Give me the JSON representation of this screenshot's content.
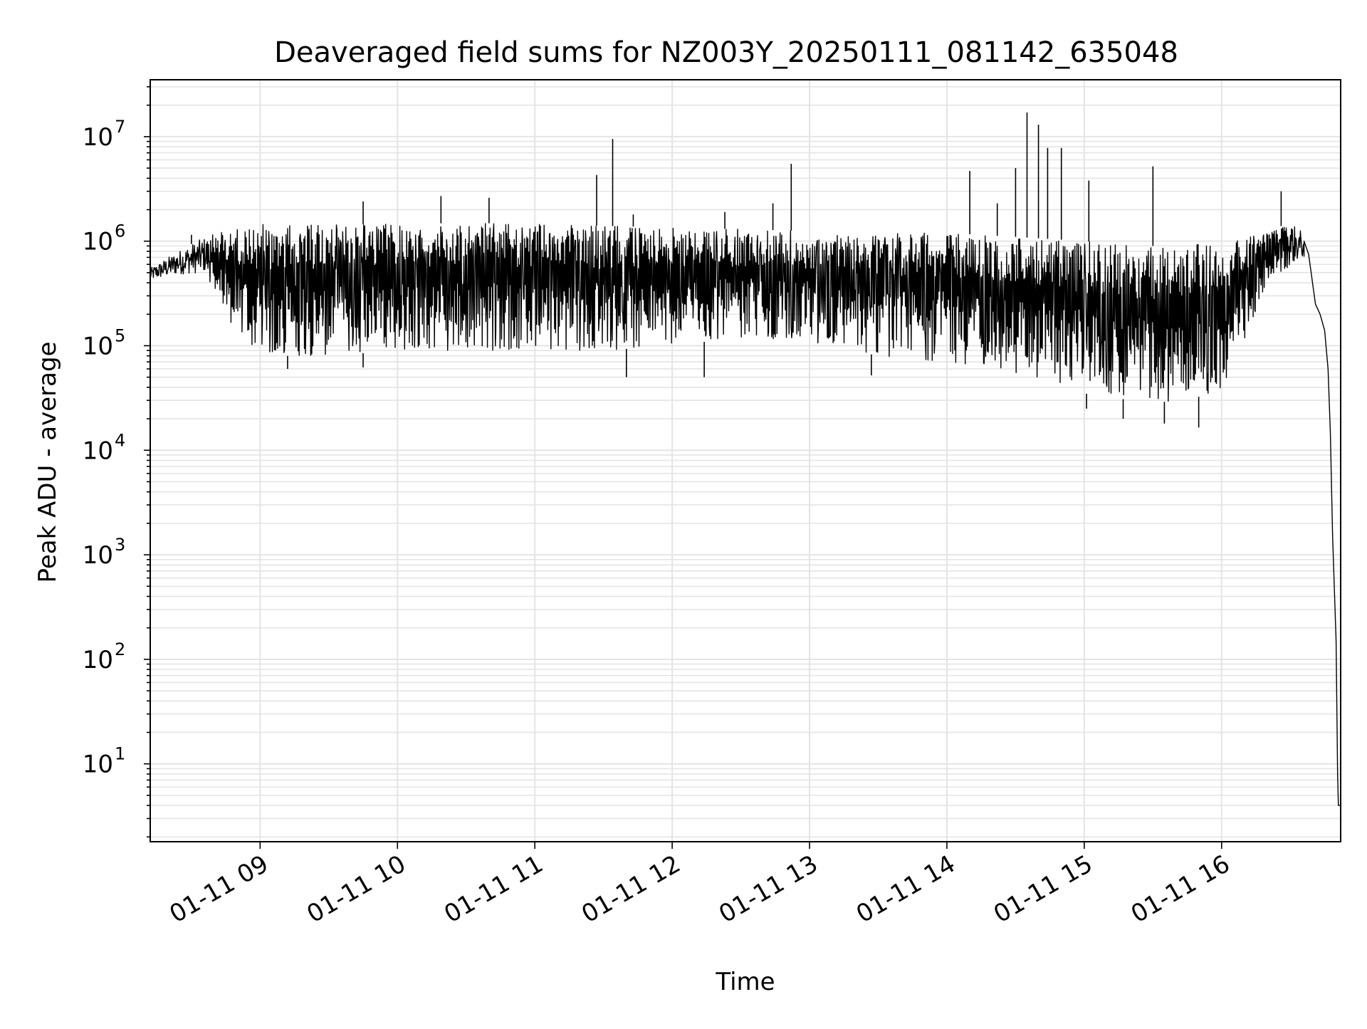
{
  "chart_data": {
    "type": "line",
    "title": "Deaveraged field sums for NZ003Y_20250111_081142_635048",
    "xlabel": "Time",
    "ylabel": "Peak ADU - average",
    "x_axis": {
      "kind": "time",
      "range": [
        "2025-01-11T08:12:00",
        "2025-01-11T16:52:00"
      ],
      "ticks": [
        {
          "value": "2025-01-11T09:00:00",
          "label": "01-11 09"
        },
        {
          "value": "2025-01-11T10:00:00",
          "label": "01-11 10"
        },
        {
          "value": "2025-01-11T11:00:00",
          "label": "01-11 11"
        },
        {
          "value": "2025-01-11T12:00:00",
          "label": "01-11 12"
        },
        {
          "value": "2025-01-11T13:00:00",
          "label": "01-11 13"
        },
        {
          "value": "2025-01-11T14:00:00",
          "label": "01-11 14"
        },
        {
          "value": "2025-01-11T15:00:00",
          "label": "01-11 15"
        },
        {
          "value": "2025-01-11T16:00:00",
          "label": "01-11 16"
        }
      ]
    },
    "y_axis": {
      "scale": "log",
      "range": [
        1.8,
        35000000
      ],
      "ticks": [
        {
          "value": 10,
          "base": "10",
          "exp": "1"
        },
        {
          "value": 100,
          "base": "10",
          "exp": "2"
        },
        {
          "value": 1000,
          "base": "10",
          "exp": "3"
        },
        {
          "value": 10000,
          "base": "10",
          "exp": "4"
        },
        {
          "value": 100000,
          "base": "10",
          "exp": "5"
        },
        {
          "value": 1000000,
          "base": "10",
          "exp": "6"
        },
        {
          "value": 10000000,
          "base": "10",
          "exp": "7"
        }
      ]
    },
    "grid": true,
    "series": [
      {
        "color": "#000000",
        "envelope": [
          {
            "t": "2025-01-11T08:12:00",
            "low": 420000,
            "high": 550000
          },
          {
            "t": "2025-01-11T08:24:00",
            "low": 480000,
            "high": 800000
          },
          {
            "t": "2025-01-11T08:36:00",
            "low": 500000,
            "high": 1100000
          },
          {
            "t": "2025-01-11T08:48:00",
            "low": 150000,
            "high": 1300000
          },
          {
            "t": "2025-01-11T09:00:00",
            "low": 80000,
            "high": 1450000
          },
          {
            "t": "2025-01-11T09:30:00",
            "low": 80000,
            "high": 1450000
          },
          {
            "t": "2025-01-11T10:00:00",
            "low": 90000,
            "high": 1450000
          },
          {
            "t": "2025-01-11T10:30:00",
            "low": 90000,
            "high": 1500000
          },
          {
            "t": "2025-01-11T11:00:00",
            "low": 90000,
            "high": 1450000
          },
          {
            "t": "2025-01-11T11:30:00",
            "low": 90000,
            "high": 1400000
          },
          {
            "t": "2025-01-11T12:00:00",
            "low": 100000,
            "high": 1350000
          },
          {
            "t": "2025-01-11T12:30:00",
            "low": 120000,
            "high": 1300000
          },
          {
            "t": "2025-01-11T13:00:00",
            "low": 110000,
            "high": 1250000
          },
          {
            "t": "2025-01-11T13:30:00",
            "low": 80000,
            "high": 1200000
          },
          {
            "t": "2025-01-11T14:00:00",
            "low": 70000,
            "high": 1200000
          },
          {
            "t": "2025-01-11T14:30:00",
            "low": 55000,
            "high": 1100000
          },
          {
            "t": "2025-01-11T15:00:00",
            "low": 35000,
            "high": 1000000
          },
          {
            "t": "2025-01-11T15:30:00",
            "low": 28000,
            "high": 900000
          },
          {
            "t": "2025-01-11T16:00:00",
            "low": 35000,
            "high": 950000
          },
          {
            "t": "2025-01-11T16:18:00",
            "low": 300000,
            "high": 1200000
          },
          {
            "t": "2025-01-11T16:30:00",
            "low": 600000,
            "high": 1500000
          },
          {
            "t": "2025-01-11T16:36:00",
            "low": 700000,
            "high": 1200000
          }
        ],
        "tail": [
          {
            "t": "2025-01-11T16:36:00",
            "y": 1000000
          },
          {
            "t": "2025-01-11T16:38:00",
            "y": 750000
          },
          {
            "t": "2025-01-11T16:41:00",
            "y": 250000
          },
          {
            "t": "2025-01-11T16:43:00",
            "y": 200000
          },
          {
            "t": "2025-01-11T16:45:00",
            "y": 140000
          },
          {
            "t": "2025-01-11T16:46:30",
            "y": 60000
          },
          {
            "t": "2025-01-11T16:47:30",
            "y": 15000
          },
          {
            "t": "2025-01-11T16:48:30",
            "y": 1500
          },
          {
            "t": "2025-01-11T16:50:00",
            "y": 150
          },
          {
            "t": "2025-01-11T16:50:40",
            "y": 8
          },
          {
            "t": "2025-01-11T16:51:00",
            "y": 4
          },
          {
            "t": "2025-01-11T16:51:40",
            "y": 4
          }
        ],
        "spikes": [
          {
            "t": "2025-01-11T08:30:00",
            "y": 1150000
          },
          {
            "t": "2025-01-11T09:45:00",
            "y": 2400000
          },
          {
            "t": "2025-01-11T10:19:00",
            "y": 2700000
          },
          {
            "t": "2025-01-11T10:40:00",
            "y": 2600000
          },
          {
            "t": "2025-01-11T11:27:00",
            "y": 4300000
          },
          {
            "t": "2025-01-11T11:34:00",
            "y": 9500000
          },
          {
            "t": "2025-01-11T11:43:00",
            "y": 1800000
          },
          {
            "t": "2025-01-11T12:23:00",
            "y": 1900000
          },
          {
            "t": "2025-01-11T12:44:00",
            "y": 2300000
          },
          {
            "t": "2025-01-11T12:52:00",
            "y": 5500000
          },
          {
            "t": "2025-01-11T14:10:00",
            "y": 4700000
          },
          {
            "t": "2025-01-11T14:22:00",
            "y": 2300000
          },
          {
            "t": "2025-01-11T14:30:00",
            "y": 5000000
          },
          {
            "t": "2025-01-11T14:35:00",
            "y": 17000000
          },
          {
            "t": "2025-01-11T14:40:00",
            "y": 13000000
          },
          {
            "t": "2025-01-11T14:44:00",
            "y": 7800000
          },
          {
            "t": "2025-01-11T14:50:00",
            "y": 7800000
          },
          {
            "t": "2025-01-11T15:02:00",
            "y": 3800000
          },
          {
            "t": "2025-01-11T15:30:00",
            "y": 5200000
          },
          {
            "t": "2025-01-11T16:26:00",
            "y": 3000000
          }
        ],
        "dips": [
          {
            "t": "2025-01-11T09:12:00",
            "y": 60000
          },
          {
            "t": "2025-01-11T09:45:00",
            "y": 62000
          },
          {
            "t": "2025-01-11T11:40:00",
            "y": 50000
          },
          {
            "t": "2025-01-11T12:14:00",
            "y": 50000
          },
          {
            "t": "2025-01-11T13:27:00",
            "y": 52000
          },
          {
            "t": "2025-01-11T15:01:00",
            "y": 25000
          },
          {
            "t": "2025-01-11T15:17:00",
            "y": 20000
          },
          {
            "t": "2025-01-11T15:35:00",
            "y": 18000
          },
          {
            "t": "2025-01-11T15:50:00",
            "y": 16500
          }
        ]
      }
    ]
  }
}
